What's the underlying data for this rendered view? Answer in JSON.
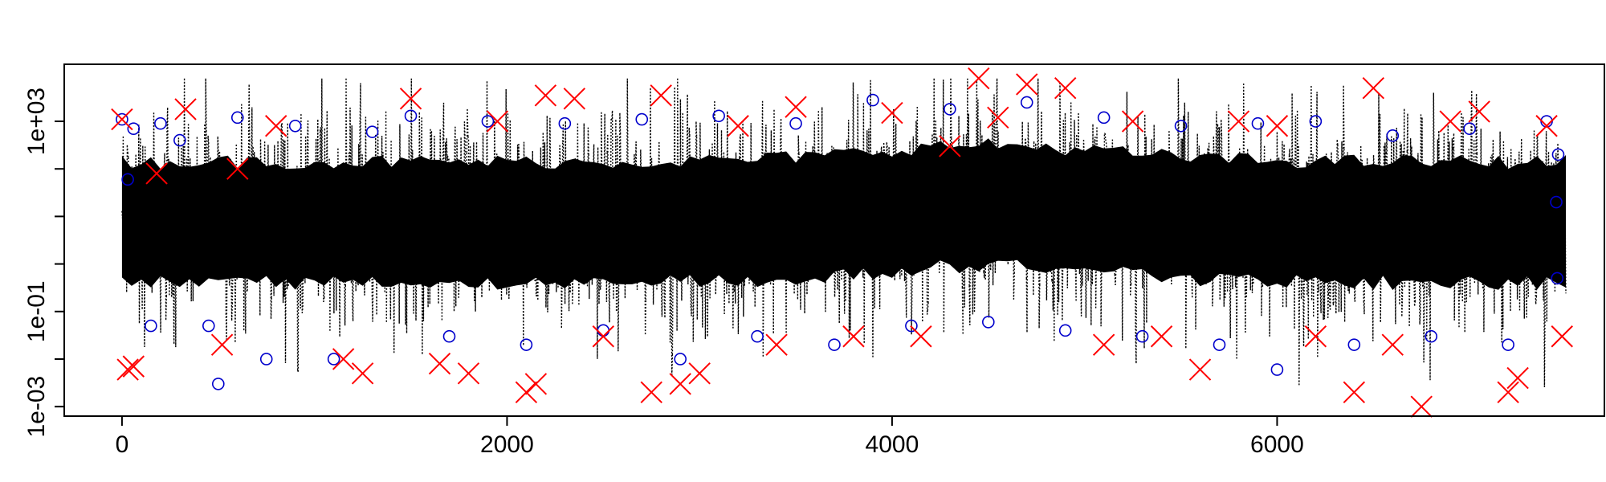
{
  "chart_data": {
    "type": "scatter",
    "title": "",
    "xlabel": "",
    "ylabel": "",
    "xlim": [
      -300,
      7700
    ],
    "ylog": true,
    "ylim_log10": [
      -3.2,
      4.2
    ],
    "x_ticks": [
      0,
      2000,
      4000,
      6000
    ],
    "x_tick_labels": [
      "0",
      "2000",
      "4000",
      "6000"
    ],
    "y_ticks_log10": [
      -3,
      -2,
      -1,
      0,
      1,
      2,
      3
    ],
    "y_tick_labels": {
      "-3": "1e-03",
      "-1": "1e-01",
      "3": "1e+03"
    },
    "n_observations": 7500,
    "grid": false,
    "legend": "none",
    "series": [
      {
        "style": "black dotted line",
        "color": "#000000",
        "description_values": "band of values centered near 1e+01, mostly spanning 1e-01 to 1e+03"
      },
      {
        "style": "blue open circles",
        "color": "#0000cc",
        "points": [
          [
            0,
            1100
          ],
          [
            30,
            60
          ],
          [
            60,
            700
          ],
          [
            150,
            0.05
          ],
          [
            200,
            900
          ],
          [
            300,
            400
          ],
          [
            450,
            0.05
          ],
          [
            500,
            0.003
          ],
          [
            600,
            1200
          ],
          [
            750,
            0.01
          ],
          [
            900,
            800
          ],
          [
            1100,
            0.01
          ],
          [
            1300,
            600
          ],
          [
            1500,
            1300
          ],
          [
            1700,
            0.03
          ],
          [
            1900,
            1000
          ],
          [
            2100,
            0.02
          ],
          [
            2300,
            900
          ],
          [
            2500,
            0.04
          ],
          [
            2700,
            1100
          ],
          [
            2900,
            0.01
          ],
          [
            3100,
            1300
          ],
          [
            3300,
            0.03
          ],
          [
            3500,
            900
          ],
          [
            3700,
            0.02
          ],
          [
            3900,
            2800
          ],
          [
            4100,
            0.05
          ],
          [
            4300,
            1800
          ],
          [
            4500,
            0.06
          ],
          [
            4700,
            2500
          ],
          [
            4900,
            0.04
          ],
          [
            5100,
            1200
          ],
          [
            5300,
            0.03
          ],
          [
            5500,
            800
          ],
          [
            5700,
            0.02
          ],
          [
            5900,
            900
          ],
          [
            6000,
            0.006
          ],
          [
            6200,
            1000
          ],
          [
            6400,
            0.02
          ],
          [
            6600,
            500
          ],
          [
            6800,
            0.03
          ],
          [
            7000,
            700
          ],
          [
            7200,
            0.02
          ],
          [
            7400,
            1000
          ],
          [
            7450,
            20
          ],
          [
            7460,
            200
          ],
          [
            7455,
            0.5
          ]
        ]
      },
      {
        "style": "red crosses",
        "color": "#ff0000",
        "points": [
          [
            0,
            1100
          ],
          [
            30,
            0.006
          ],
          [
            60,
            0.007
          ],
          [
            180,
            80
          ],
          [
            330,
            1800
          ],
          [
            520,
            0.02
          ],
          [
            600,
            100
          ],
          [
            800,
            800
          ],
          [
            1150,
            0.01
          ],
          [
            1250,
            0.005
          ],
          [
            1500,
            3000
          ],
          [
            1650,
            0.008
          ],
          [
            1800,
            0.005
          ],
          [
            1950,
            1000
          ],
          [
            2100,
            0.002
          ],
          [
            2150,
            0.003
          ],
          [
            2200,
            3500
          ],
          [
            2350,
            3000
          ],
          [
            2500,
            0.03
          ],
          [
            2750,
            0.002
          ],
          [
            2800,
            3500
          ],
          [
            2900,
            0.003
          ],
          [
            3000,
            0.005
          ],
          [
            3200,
            800
          ],
          [
            3400,
            0.02
          ],
          [
            3500,
            2000
          ],
          [
            3800,
            0.03
          ],
          [
            4000,
            1500
          ],
          [
            4150,
            0.03
          ],
          [
            4300,
            300
          ],
          [
            4450,
            8000
          ],
          [
            4550,
            1200
          ],
          [
            4700,
            6000
          ],
          [
            4900,
            5000
          ],
          [
            5100,
            0.02
          ],
          [
            5250,
            1000
          ],
          [
            5400,
            0.03
          ],
          [
            5600,
            0.006
          ],
          [
            5800,
            1000
          ],
          [
            6000,
            800
          ],
          [
            6200,
            0.03
          ],
          [
            6400,
            0.002
          ],
          [
            6500,
            5000
          ],
          [
            6600,
            0.02
          ],
          [
            6750,
            0.001
          ],
          [
            6900,
            1000
          ],
          [
            7050,
            1600
          ],
          [
            7200,
            0.002
          ],
          [
            7250,
            0.004
          ],
          [
            7400,
            800
          ],
          [
            7480,
            0.03
          ]
        ]
      }
    ]
  }
}
